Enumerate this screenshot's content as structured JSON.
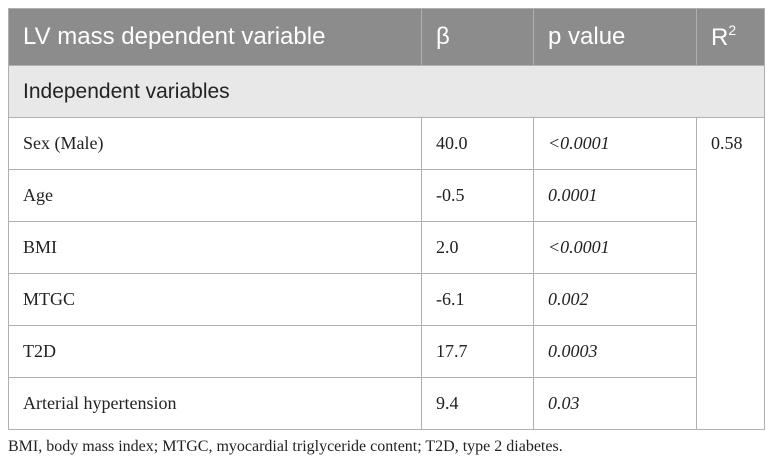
{
  "table": {
    "headers": {
      "variable": "LV mass dependent variable",
      "beta": "β",
      "p_value": "p value",
      "r2_base": "R",
      "r2_sup": "2"
    },
    "section_label": "Independent variables",
    "r2_value": "0.58",
    "rows": [
      {
        "variable": "Sex (Male)",
        "beta": "40.0",
        "p": "<0.0001"
      },
      {
        "variable": "Age",
        "beta": "-0.5",
        "p": "0.0001"
      },
      {
        "variable": "BMI",
        "beta": "2.0",
        "p": "<0.0001"
      },
      {
        "variable": "MTGC",
        "beta": "-6.1",
        "p": "0.002"
      },
      {
        "variable": "T2D",
        "beta": "17.7",
        "p": "0.0003"
      },
      {
        "variable": "Arterial hypertension",
        "beta": "9.4",
        "p": "0.03"
      }
    ]
  },
  "footnote": "BMI, body mass index; MTGC, myocardial triglyceride content; T2D, type 2 diabetes."
}
